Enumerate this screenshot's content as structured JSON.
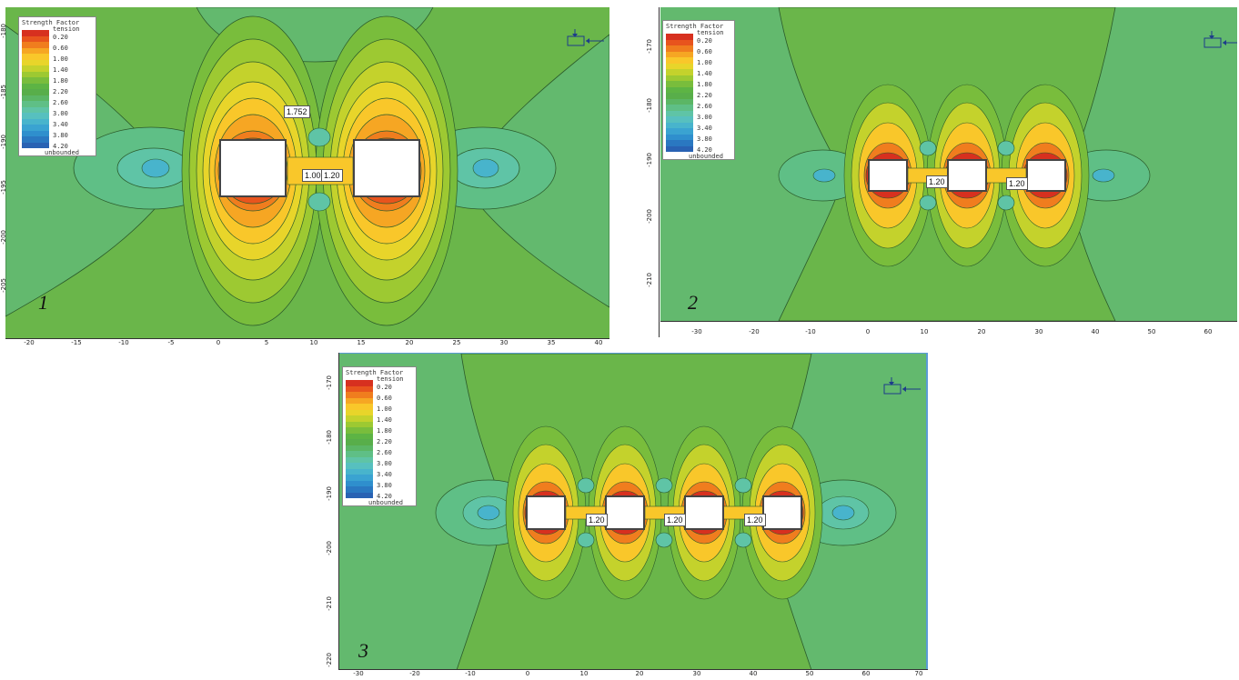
{
  "legend": {
    "title": "Strength Factor",
    "subtitle": "tension",
    "values": [
      "0.20",
      "0.60",
      "1.00",
      "1.40",
      "1.80",
      "2.20",
      "2.60",
      "3.00",
      "3.40",
      "3.80",
      "4.20"
    ],
    "unbounded": "unbounded",
    "colors": [
      "#d7301f",
      "#e8541d",
      "#f07d1e",
      "#f6a623",
      "#f9c72a",
      "#e8d52a",
      "#c4d22c",
      "#9dc932",
      "#79bd3c",
      "#5db444",
      "#58ae4a",
      "#5bb665",
      "#5fbf86",
      "#5fc4a6",
      "#57c0bf",
      "#48b4cc",
      "#3aa3d1",
      "#2f8fcd",
      "#2a78c1",
      "#2962b3"
    ]
  },
  "colors": {
    "background_field": "#6ab64a",
    "far_field": "#63b96e",
    "contour_line": "#2b5b2b",
    "opening_fill": "#ffffff"
  },
  "panels": [
    {
      "number": "1",
      "yticks": [
        "-180",
        "-185",
        "-190",
        "-195",
        "-200",
        "-205"
      ],
      "xticks": [
        "-20",
        "-15",
        "-10",
        "-5",
        "0",
        "5",
        "10",
        "15",
        "20",
        "25",
        "30",
        "35",
        "40"
      ],
      "labels": [
        "1.752",
        "1.00",
        "1.20"
      ]
    },
    {
      "number": "2",
      "yticks": [
        "-170",
        "-180",
        "-190",
        "-200",
        "-210"
      ],
      "xticks": [
        "-30",
        "-20",
        "-10",
        "0",
        "10",
        "20",
        "30",
        "40",
        "50",
        "60"
      ],
      "labels": [
        "1.20",
        "1.20"
      ]
    },
    {
      "number": "3",
      "yticks": [
        "-170",
        "-180",
        "-190",
        "-200",
        "-210",
        "-220"
      ],
      "xticks": [
        "-30",
        "-20",
        "-10",
        "0",
        "10",
        "20",
        "30",
        "40",
        "50",
        "60",
        "70"
      ],
      "labels": [
        "1.20",
        "1.20",
        "1.20"
      ]
    }
  ]
}
